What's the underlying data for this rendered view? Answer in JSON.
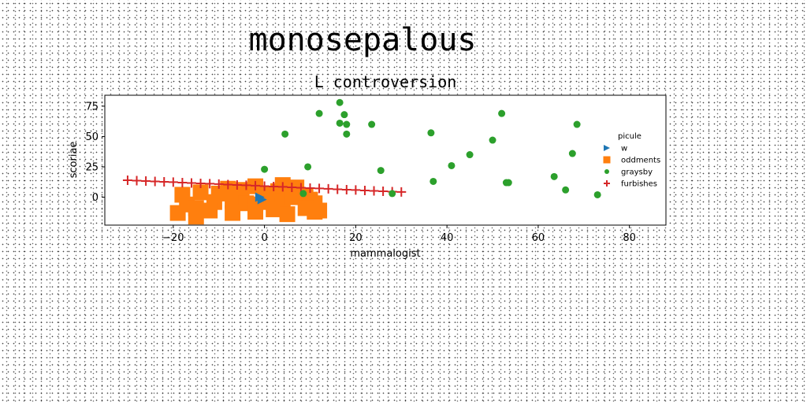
{
  "suptitle": "monosepalous",
  "chart_data": {
    "type": "scatter",
    "title": "L controversion",
    "xlabel": "mammalogist",
    "ylabel": "scoriae",
    "xlim": [
      -35,
      88
    ],
    "ylim": [
      -23,
      84
    ],
    "xticks": [
      -20,
      0,
      20,
      40,
      60,
      80
    ],
    "yticks": [
      0,
      25,
      50,
      75
    ],
    "grid": false,
    "legend": {
      "title": "picule",
      "placement": "right",
      "entries": [
        "w",
        "oddments",
        "graysby",
        "furbishes"
      ]
    },
    "series": [
      {
        "name": "w",
        "marker": "triangle-right",
        "color": "#1f77b4",
        "points": [
          [
            -1,
            0
          ],
          [
            -0.5,
            -2
          ]
        ]
      },
      {
        "name": "oddments",
        "marker": "square",
        "color": "#ff7f0e",
        "points": [
          [
            -18,
            2
          ],
          [
            -14,
            4
          ],
          [
            -10,
            3
          ],
          [
            -8,
            7
          ],
          [
            -5,
            6
          ],
          [
            -2,
            9
          ],
          [
            0,
            3
          ],
          [
            3,
            5
          ],
          [
            4,
            10
          ],
          [
            7,
            8
          ],
          [
            9,
            1
          ],
          [
            -17,
            -6
          ],
          [
            -15,
            -9
          ],
          [
            -11,
            -4
          ],
          [
            -7,
            -3
          ],
          [
            -4,
            -5
          ],
          [
            -2,
            -6
          ],
          [
            1,
            -4
          ],
          [
            4,
            -7
          ],
          [
            6,
            0
          ],
          [
            10,
            -2
          ],
          [
            11,
            -5
          ],
          [
            -19,
            -13
          ],
          [
            -15,
            -16
          ],
          [
            -12,
            -11
          ],
          [
            -7,
            -13
          ],
          [
            -2,
            -12
          ],
          [
            2,
            -10
          ],
          [
            5,
            -14
          ],
          [
            9,
            -9
          ],
          [
            11,
            -12
          ],
          [
            12,
            -11
          ]
        ]
      },
      {
        "name": "graysby",
        "marker": "circle",
        "color": "#2ca02c",
        "points": [
          [
            16.5,
            78
          ],
          [
            17.5,
            68
          ],
          [
            18,
            60
          ],
          [
            16.5,
            61
          ],
          [
            18,
            52
          ],
          [
            12,
            69
          ],
          [
            4.5,
            52
          ],
          [
            23.5,
            60
          ],
          [
            36.5,
            53
          ],
          [
            52,
            69
          ],
          [
            50,
            47
          ],
          [
            68.5,
            60
          ],
          [
            67.5,
            36
          ],
          [
            45,
            35
          ],
          [
            41,
            26
          ],
          [
            25.5,
            22
          ],
          [
            0,
            23
          ],
          [
            9.5,
            25
          ],
          [
            37,
            13
          ],
          [
            53.5,
            12
          ],
          [
            53,
            12
          ],
          [
            63.5,
            17
          ],
          [
            66,
            6
          ],
          [
            73,
            2
          ],
          [
            8.5,
            3
          ],
          [
            28,
            3
          ]
        ]
      },
      {
        "name": "furbishes",
        "marker": "plus",
        "color": "#d62728",
        "points": [
          [
            -30,
            14
          ],
          [
            -28,
            13.6
          ],
          [
            -26,
            13.3
          ],
          [
            -24,
            13
          ],
          [
            -22,
            12.7
          ],
          [
            -20,
            12.4
          ],
          [
            -18,
            12
          ],
          [
            -16,
            11.7
          ],
          [
            -14,
            11.4
          ],
          [
            -12,
            11.1
          ],
          [
            -10,
            10.8
          ],
          [
            -8,
            10.4
          ],
          [
            -6,
            10.1
          ],
          [
            -4,
            9.8
          ],
          [
            -2,
            9.5
          ],
          [
            0,
            9.1
          ],
          [
            2,
            8.8
          ],
          [
            4,
            8.5
          ],
          [
            6,
            8.1
          ],
          [
            8,
            7.8
          ],
          [
            10,
            7.5
          ],
          [
            12,
            7.2
          ],
          [
            14,
            6.9
          ],
          [
            16,
            6.5
          ],
          [
            18,
            6.2
          ],
          [
            20,
            5.9
          ],
          [
            22,
            5.5
          ],
          [
            24,
            5.2
          ],
          [
            26,
            4.9
          ],
          [
            28,
            4.6
          ],
          [
            30,
            4.3
          ]
        ]
      }
    ]
  }
}
